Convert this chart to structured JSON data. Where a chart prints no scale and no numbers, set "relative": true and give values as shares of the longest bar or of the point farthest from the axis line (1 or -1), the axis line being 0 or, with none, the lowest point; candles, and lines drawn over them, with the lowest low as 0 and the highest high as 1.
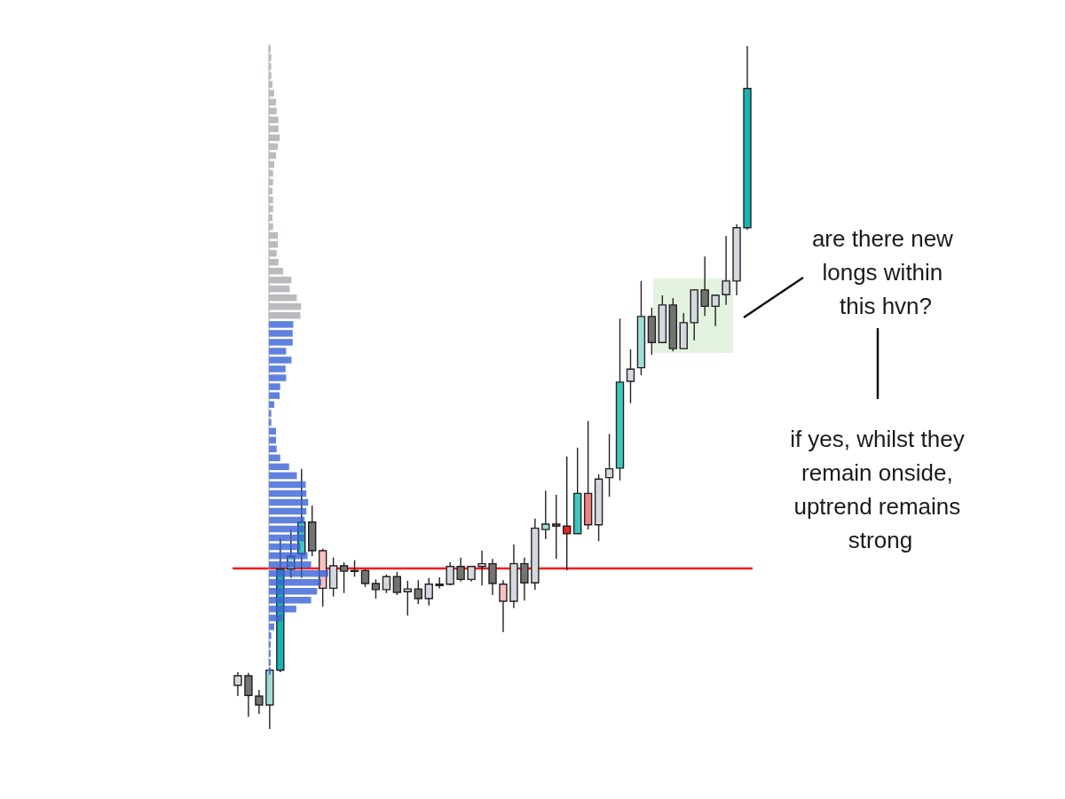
{
  "chart_data": [
    {
      "type": "candlestick",
      "relative": true,
      "tick_labels": false,
      "categories": [
        null,
        null,
        null,
        null,
        null,
        null,
        null,
        null,
        null,
        null,
        null,
        null,
        null,
        null,
        null,
        null,
        null,
        null,
        null,
        null,
        null,
        null,
        null,
        null,
        null,
        null,
        null,
        null,
        null,
        null,
        null,
        null,
        null,
        null,
        null,
        null,
        null,
        null,
        null,
        null,
        null,
        null,
        null,
        null,
        null,
        null,
        null,
        null,
        null
      ],
      "ohlc": [
        [
          0.064,
          0.083,
          0.048,
          0.078
        ],
        [
          0.078,
          0.082,
          0.018,
          0.049
        ],
        [
          0.048,
          0.057,
          0.022,
          0.035
        ],
        [
          0.035,
          0.09,
          0,
          0.086
        ],
        [
          0.086,
          0.279,
          0.083,
          0.234
        ],
        [
          0.234,
          0.292,
          0.221,
          0.253
        ],
        [
          0.256,
          0.381,
          0.221,
          0.303
        ],
        [
          0.303,
          0.327,
          0.253,
          0.261
        ],
        [
          0.261,
          0.264,
          0.179,
          0.206
        ],
        [
          0.206,
          0.251,
          0.194,
          0.239
        ],
        [
          0.239,
          0.244,
          0.199,
          0.231
        ],
        [
          0.232,
          0.247,
          0.223,
          0.231
        ],
        [
          0.232,
          0.234,
          0.208,
          0.213
        ],
        [
          0.213,
          0.219,
          0.191,
          0.204
        ],
        [
          0.204,
          0.226,
          0.199,
          0.223
        ],
        [
          0.223,
          0.23,
          0.196,
          0.2
        ],
        [
          0.201,
          0.217,
          0.166,
          0.205
        ],
        [
          0.205,
          0.218,
          0.183,
          0.191
        ],
        [
          0.191,
          0.221,
          0.181,
          0.212
        ],
        [
          0.21,
          0.222,
          0.206,
          0.212
        ],
        [
          0.212,
          0.244,
          0.21,
          0.238
        ],
        [
          0.238,
          0.251,
          0.216,
          0.219
        ],
        [
          0.219,
          0.239,
          0.216,
          0.238
        ],
        [
          0.238,
          0.261,
          0.21,
          0.242
        ],
        [
          0.242,
          0.249,
          0.196,
          0.213
        ],
        [
          0.212,
          0.218,
          0.142,
          0.187
        ],
        [
          0.187,
          0.27,
          0.177,
          0.242
        ],
        [
          0.242,
          0.251,
          0.188,
          0.214
        ],
        [
          0.214,
          0.308,
          0.204,
          0.294
        ],
        [
          0.292,
          0.349,
          0.278,
          0.3
        ],
        [
          0.3,
          0.343,
          0.249,
          0.297
        ],
        [
          0.297,
          0.399,
          0.232,
          0.286
        ],
        [
          0.286,
          0.412,
          0.286,
          0.345
        ],
        [
          0.345,
          0.451,
          0.292,
          0.299
        ],
        [
          0.299,
          0.373,
          0.275,
          0.366
        ],
        [
          0.368,
          0.432,
          0.34,
          0.381
        ],
        [
          0.382,
          0.601,
          0.364,
          0.508
        ],
        [
          0.509,
          0.556,
          0.477,
          0.527
        ],
        [
          0.529,
          0.656,
          0.518,
          0.604
        ],
        [
          0.604,
          0.617,
          0.548,
          0.566
        ],
        [
          0.566,
          0.635,
          0.566,
          0.621
        ],
        [
          0.621,
          0.631,
          0.553,
          0.557
        ],
        [
          0.557,
          0.609,
          0.557,
          0.595
        ],
        [
          0.595,
          0.644,
          0.569,
          0.643
        ],
        [
          0.643,
          0.692,
          0.605,
          0.619
        ],
        [
          0.619,
          0.636,
          0.59,
          0.635
        ],
        [
          0.636,
          0.722,
          0.621,
          0.656
        ],
        [
          0.656,
          0.739,
          0.635,
          0.734
        ],
        [
          0.734,
          1,
          0.731,
          0.938
        ]
      ],
      "colors": [
        "#d5d9df",
        "#737373",
        "#737373",
        "#a2dcd9",
        "#17b3b0",
        "#a2dcd9",
        "#3ec7bd",
        "#737373",
        "#f9c1be",
        "#d5d9df",
        "#737373",
        "#737373",
        "#737373",
        "#737373",
        "#d5d9df",
        "#737373",
        "#d5d9df",
        "#737373",
        "#d5d9df",
        "#737373",
        "#d5d9df",
        "#737373",
        "#d5d9df",
        "#d5d9df",
        "#737373",
        "#f9c1be",
        "#d5d9df",
        "#737373",
        "#d5d9df",
        "#a2dcd9",
        "#737373",
        "#ee1c1c",
        "#3ec7bd",
        "#f08080",
        "#d5d9df",
        "#d5d9df",
        "#3ec7bd",
        "#d5d9df",
        "#a2dcd9",
        "#737373",
        "#d5d9df",
        "#737373",
        "#d5d9df",
        "#d5d9df",
        "#737373",
        "#d5d9df",
        "#d5d9df",
        "#d5d9df",
        "#17b3b0"
      ],
      "ref_lines": [
        {
          "axis": "y",
          "value": 0.235,
          "color": "#ff1a1a"
        }
      ],
      "annotations": [
        "are there new longs within this hvn?",
        "if yes, whilst they remain onside, uptrend remains strong"
      ]
    },
    {
      "type": "bar",
      "orientation": "horizontal",
      "relative": true,
      "tick_labels": false,
      "categories": [
        null,
        null,
        null,
        null,
        null,
        null,
        null,
        null,
        null,
        null,
        null,
        null,
        null,
        null,
        null,
        null,
        null,
        null,
        null,
        null,
        null,
        null,
        null,
        null,
        null,
        null,
        null,
        null,
        null,
        null,
        null,
        null,
        null,
        null,
        null,
        null,
        null,
        null,
        null,
        null,
        null,
        null,
        null,
        null,
        null,
        null,
        null,
        null,
        null,
        null,
        null,
        null,
        null,
        null,
        null,
        null,
        null,
        null,
        null,
        null,
        null,
        null,
        null,
        null,
        null,
        null,
        null,
        null,
        null,
        null,
        null
      ],
      "values": [
        0.03,
        0.04,
        0.04,
        0.04,
        0.06,
        0.09,
        0.12,
        0.13,
        0.16,
        0.16,
        0.18,
        0.15,
        0.12,
        0.09,
        0.07,
        0.07,
        0.06,
        0.07,
        0.07,
        0.06,
        0.07,
        0.15,
        0.15,
        0.13,
        0.16,
        0.24,
        0.38,
        0.35,
        0.47,
        0.54,
        0.53,
        0.41,
        0.4,
        0.4,
        0.29,
        0.38,
        0.28,
        0.29,
        0.19,
        0.18,
        0.09,
        0.04,
        0.04,
        0.12,
        0.12,
        0.13,
        0.19,
        0.34,
        0.47,
        0.62,
        0.63,
        0.66,
        0.63,
        0.6,
        0.6,
        0.6,
        0.53,
        0.65,
        0.71,
        1,
        0.88,
        0.81,
        0.71,
        0.46,
        0.22,
        0.09,
        0.04,
        0.03,
        0.03,
        0.03,
        0.03
      ],
      "colors": [
        "#a9abb0",
        "#a9abb0",
        "#a9abb0",
        "#a9abb0",
        "#a9abb0",
        "#a9abb0",
        "#a9abb0",
        "#a9abb0",
        "#a9abb0",
        "#a9abb0",
        "#a9abb0",
        "#a9abb0",
        "#a9abb0",
        "#a9abb0",
        "#a9abb0",
        "#a9abb0",
        "#a9abb0",
        "#a9abb0",
        "#a9abb0",
        "#a9abb0",
        "#a9abb0",
        "#a9abb0",
        "#a9abb0",
        "#a9abb0",
        "#a9abb0",
        "#a9abb0",
        "#a9abb0",
        "#a9abb0",
        "#a9abb0",
        "#a9abb0",
        "#a9abb0",
        "#3a62d6",
        "#3a62d6",
        "#3a62d6",
        "#3a62d6",
        "#3a62d6",
        "#3a62d6",
        "#3a62d6",
        "#3a62d6",
        "#3a62d6",
        "#3a62d6",
        "#3a62d6",
        "#3a62d6",
        "#3a62d6",
        "#3a62d6",
        "#3a62d6",
        "#3a62d6",
        "#3a62d6",
        "#3a62d6",
        "#3a62d6",
        "#3a62d6",
        "#3a62d6",
        "#3a62d6",
        "#3a62d6",
        "#3a62d6",
        "#3a62d6",
        "#3a62d6",
        "#3a62d6",
        "#3a62d6",
        "#3a62d6",
        "#3a62d6",
        "#3a62d6",
        "#3a62d6",
        "#3a62d6",
        "#3a62d6",
        "#3a62d6",
        "#3a62d6",
        "#3a62d6",
        "#3a62d6",
        "#3a62d6",
        "#3a62d6"
      ]
    }
  ]
}
